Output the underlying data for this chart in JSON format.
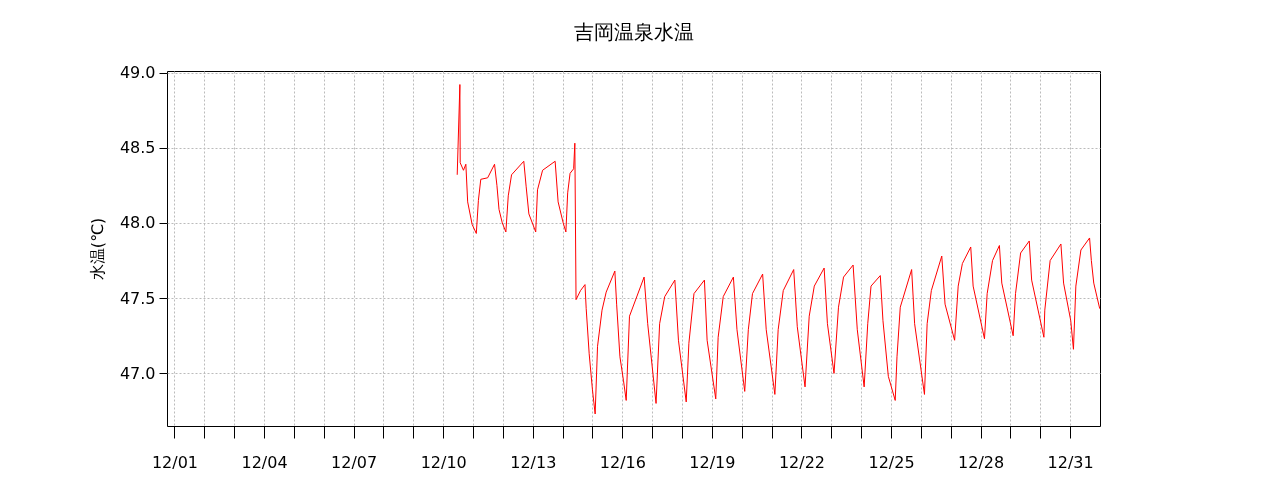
{
  "chart_data": {
    "type": "line",
    "title": "吉岡温泉水温",
    "ylabel": "水温(℃)",
    "color": "#ff0000",
    "grid": true,
    "x": [
      "--12-10T11:17",
      "--12-10T13:26",
      "--12-10T13:41",
      "--12-10T16:19",
      "--12-10T18:14",
      "--12-10T19:41",
      "--12-10T23:17",
      "--12-11T02:38",
      "--12-11T04:19",
      "--12-11T06:14",
      "--12-11T11:46",
      "--12-11T17:17",
      "--12-11T19:12",
      "--12-11T20:53",
      "--12-11T23:31",
      "--12-12T02:24",
      "--12-12T04:19",
      "--12-12T06:58",
      "--12-12T16:48",
      "--12-12T18:43",
      "--12-12T20:53",
      "--12-13T02:24",
      "--12-13T03:50",
      "--12-13T07:55",
      "--12-13T18:00",
      "--12-13T20:24",
      "--12-14T00:29",
      "--12-14T02:38",
      "--12-14T04:05",
      "--12-14T06:00",
      "--12-14T08:53",
      "--12-14T09:50",
      "--12-14T10:48",
      "--12-14T14:24",
      "--12-14T18:00",
      "--12-14T18:58",
      "--12-14T21:22",
      "--12-15T00:00",
      "--12-15T02:10",
      "--12-15T04:05",
      "--12-15T07:41",
      "--12-15T11:02",
      "--12-15T18:00",
      "--12-15T19:26",
      "--12-15T22:05",
      "--12-16T00:58",
      "--12-16T03:07",
      "--12-16T05:46",
      "--12-16T17:31",
      "--12-16T20:24",
      "--12-17T03:07",
      "--12-17T06:00",
      "--12-17T10:05",
      "--12-17T18:14",
      "--12-17T21:07",
      "--12-18T03:22",
      "--12-18T05:31",
      "--12-18T09:36",
      "--12-18T18:00",
      "--12-18T20:10",
      "--12-19T03:07",
      "--12-19T05:02",
      "--12-19T09:07",
      "--12-19T17:17",
      "--12-19T20:10",
      "--12-20T02:24",
      "--12-20T05:17",
      "--12-20T08:38",
      "--12-20T16:48",
      "--12-20T19:41",
      "--12-21T02:38",
      "--12-21T05:17",
      "--12-21T09:22",
      "--12-21T17:46",
      "--12-21T20:38",
      "--12-22T02:53",
      "--12-22T06:14",
      "--12-22T10:19",
      "--12-22T18:14",
      "--12-22T20:53",
      "--12-23T02:10",
      "--12-23T05:46",
      "--12-23T09:50",
      "--12-23T17:31",
      "--12-23T20:53",
      "--12-24T02:24",
      "--12-24T05:17",
      "--12-24T07:55",
      "--12-24T15:22",
      "--12-24T17:31",
      "--12-24T21:50",
      "--12-25T03:22",
      "--12-25T04:48",
      "--12-25T07:26",
      "--12-25T16:34",
      "--12-25T18:58",
      "--12-26T02:53",
      "--12-26T05:02",
      "--12-26T08:24",
      "--12-26T16:48",
      "--12-26T19:26",
      "--12-27T03:07",
      "--12-27T06:00",
      "--12-27T09:22",
      "--12-27T16:05",
      "--12-27T18:00",
      "--12-28T03:07",
      "--12-28T05:17",
      "--12-28T09:36",
      "--12-28T15:07",
      "--12-28T17:02",
      "--12-29T02:10",
      "--12-29T04:05",
      "--12-29T08:10",
      "--12-29T15:07",
      "--12-29T17:02",
      "--12-30T02:53",
      "--12-30T03:36",
      "--12-30T07:55",
      "--12-30T16:34",
      "--12-30T18:43",
      "--12-31T00:29",
      "--12-31T02:38",
      "--12-31T04:34",
      "--12-31T08:38",
      "--12-31T15:36",
      "--12-31T17:02",
      "--12-31T18:58",
      "--12-31T23:46"
    ],
    "values": [
      48.32,
      48.92,
      48.4,
      48.35,
      48.39,
      48.14,
      47.99,
      47.93,
      48.15,
      48.29,
      48.3,
      48.39,
      48.25,
      48.09,
      48.0,
      47.94,
      48.18,
      48.32,
      48.41,
      48.24,
      48.06,
      47.94,
      48.22,
      48.35,
      48.41,
      48.14,
      48.0,
      47.94,
      48.2,
      48.33,
      48.36,
      48.53,
      47.49,
      47.55,
      47.59,
      47.43,
      47.13,
      46.89,
      46.73,
      47.18,
      47.42,
      47.54,
      47.68,
      47.46,
      47.11,
      46.95,
      46.82,
      47.38,
      47.64,
      47.33,
      46.8,
      47.33,
      47.51,
      47.62,
      47.22,
      46.81,
      47.2,
      47.53,
      47.62,
      47.22,
      46.83,
      47.24,
      47.51,
      47.64,
      47.29,
      46.88,
      47.29,
      47.53,
      47.66,
      47.29,
      46.86,
      47.29,
      47.55,
      47.69,
      47.31,
      46.91,
      47.38,
      47.58,
      47.7,
      47.33,
      47.0,
      47.44,
      47.64,
      47.72,
      47.29,
      46.91,
      47.33,
      47.58,
      47.65,
      47.35,
      46.98,
      46.82,
      47.11,
      47.44,
      47.69,
      47.33,
      46.86,
      47.33,
      47.55,
      47.78,
      47.46,
      47.22,
      47.58,
      47.73,
      47.84,
      47.58,
      47.23,
      47.53,
      47.75,
      47.85,
      47.6,
      47.25,
      47.53,
      47.8,
      47.88,
      47.62,
      47.24,
      47.42,
      47.75,
      47.86,
      47.6,
      47.35,
      47.16,
      47.58,
      47.82,
      47.9,
      47.75,
      47.6,
      47.43
    ],
    "xlim": [
      "--11-30T18:00",
      "--12-31T23:59"
    ],
    "ylim": [
      46.65,
      49.01
    ],
    "xticks": [
      {
        "value": "--12-01",
        "label": "12/01"
      },
      {
        "value": "--12-02",
        "label": null
      },
      {
        "value": "--12-03",
        "label": null
      },
      {
        "value": "--12-04",
        "label": "12/04"
      },
      {
        "value": "--12-05",
        "label": null
      },
      {
        "value": "--12-06",
        "label": null
      },
      {
        "value": "--12-07",
        "label": "12/07"
      },
      {
        "value": "--12-08",
        "label": null
      },
      {
        "value": "--12-09",
        "label": null
      },
      {
        "value": "--12-10",
        "label": "12/10"
      },
      {
        "value": "--12-11",
        "label": null
      },
      {
        "value": "--12-12",
        "label": null
      },
      {
        "value": "--12-13",
        "label": "12/13"
      },
      {
        "value": "--12-14",
        "label": null
      },
      {
        "value": "--12-15",
        "label": null
      },
      {
        "value": "--12-16",
        "label": "12/16"
      },
      {
        "value": "--12-17",
        "label": null
      },
      {
        "value": "--12-18",
        "label": null
      },
      {
        "value": "--12-19",
        "label": "12/19"
      },
      {
        "value": "--12-20",
        "label": null
      },
      {
        "value": "--12-21",
        "label": null
      },
      {
        "value": "--12-22",
        "label": "12/22"
      },
      {
        "value": "--12-23",
        "label": null
      },
      {
        "value": "--12-24",
        "label": null
      },
      {
        "value": "--12-25",
        "label": "12/25"
      },
      {
        "value": "--12-26",
        "label": null
      },
      {
        "value": "--12-27",
        "label": null
      },
      {
        "value": "--12-28",
        "label": "12/28"
      },
      {
        "value": "--12-29",
        "label": null
      },
      {
        "value": "--12-30",
        "label": null
      },
      {
        "value": "--12-31",
        "label": "12/31"
      }
    ],
    "yticks": [
      {
        "value": 47,
        "label": "47.0"
      },
      {
        "value": 47.5,
        "label": "47.5"
      },
      {
        "value": 48,
        "label": "48.0"
      },
      {
        "value": 48.5,
        "label": "48.5"
      },
      {
        "value": 49,
        "label": "49.0"
      }
    ]
  }
}
